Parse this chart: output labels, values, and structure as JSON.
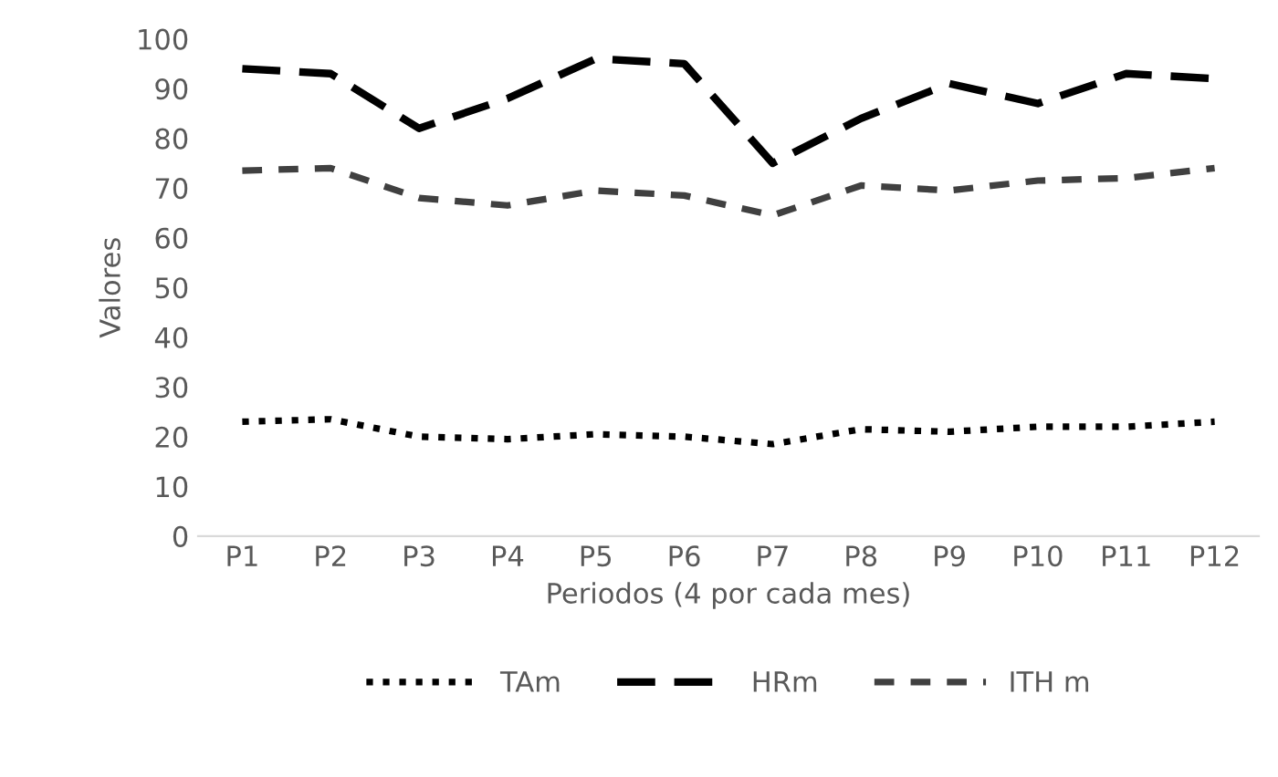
{
  "chart_data": {
    "type": "line",
    "xlabel": "Periodos (4 por cada mes)",
    "ylabel": "Valores",
    "categories": [
      "P1",
      "P2",
      "P3",
      "P4",
      "P5",
      "P6",
      "P7",
      "P8",
      "P9",
      "P10",
      "P11",
      "P12"
    ],
    "series": [
      {
        "name": "TAm",
        "color": "#000000",
        "line_style": "dotted",
        "values": [
          23,
          23.5,
          20,
          19.5,
          20.5,
          20,
          18.5,
          21.5,
          21,
          22,
          22,
          23
        ]
      },
      {
        "name": "HRm",
        "color": "#000000",
        "line_style": "dashed",
        "values": [
          94,
          93,
          82,
          88,
          96,
          95,
          75,
          84,
          91,
          87,
          93,
          92
        ]
      },
      {
        "name": "ITH m",
        "color": "#404040",
        "line_style": "dashed",
        "values": [
          73.5,
          74,
          68,
          66.5,
          69.5,
          68.5,
          64.5,
          70.5,
          69.5,
          71.5,
          72,
          74
        ]
      }
    ],
    "ylim": [
      0,
      100
    ],
    "yticks": [
      0,
      10,
      20,
      30,
      40,
      50,
      60,
      70,
      80,
      90,
      100
    ],
    "grid": false,
    "legend": "bottom",
    "marker": "none"
  }
}
